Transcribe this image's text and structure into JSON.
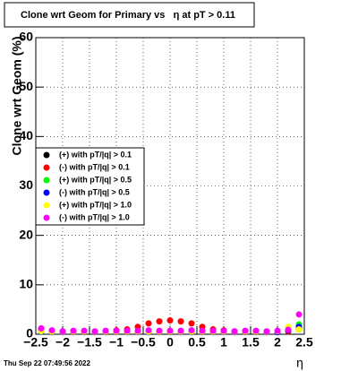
{
  "chart_data": {
    "type": "scatter",
    "title": "Clone wrt Geom for Primary vs   η at pT > 0.11",
    "x_label": "η",
    "y_label": "Clone wrt Geom (%)",
    "timestamp": "Thu Sep 22 07:49:56 2022",
    "x": [
      -2.4,
      -2.2,
      -2.0,
      -1.8,
      -1.6,
      -1.4,
      -1.2,
      -1.0,
      -0.8,
      -0.6,
      -0.4,
      -0.2,
      0.0,
      0.2,
      0.4,
      0.6,
      0.8,
      1.0,
      1.2,
      1.4,
      1.6,
      1.8,
      2.0,
      2.2,
      2.4
    ],
    "series": [
      {
        "name": "(+) with pT/|q| > 0.1",
        "color": "#000000",
        "values": [
          1.0,
          0.6,
          0.5,
          0.5,
          0.5,
          0.5,
          0.5,
          0.5,
          0.6,
          0.6,
          0.6,
          0.6,
          0.6,
          0.6,
          0.6,
          0.6,
          0.6,
          0.5,
          0.5,
          0.5,
          0.5,
          0.5,
          0.5,
          0.6,
          1.0
        ]
      },
      {
        "name": "(-) with pT/|q| > 0.1",
        "color": "#ff0000",
        "values": [
          0.8,
          0.6,
          0.5,
          0.5,
          0.5,
          0.5,
          0.6,
          0.8,
          1.0,
          1.5,
          2.2,
          2.6,
          2.8,
          2.6,
          2.2,
          1.5,
          1.0,
          0.8,
          0.6,
          0.5,
          0.5,
          0.5,
          0.5,
          0.6,
          1.2
        ]
      },
      {
        "name": "(+) with pT/|q| > 0.5",
        "color": "#00ff00",
        "values": [
          0.6,
          0.5,
          0.5,
          0.5,
          0.5,
          0.5,
          0.5,
          0.5,
          0.5,
          0.5,
          0.5,
          0.5,
          0.5,
          0.5,
          0.5,
          0.5,
          0.5,
          0.5,
          0.5,
          0.5,
          0.5,
          0.5,
          0.5,
          0.8,
          2.0
        ]
      },
      {
        "name": "(-) with pT/|q| > 0.5",
        "color": "#0000ff",
        "values": [
          0.5,
          0.4,
          0.4,
          0.4,
          0.4,
          0.4,
          0.4,
          0.4,
          0.4,
          0.4,
          0.4,
          0.4,
          0.4,
          0.4,
          0.4,
          0.4,
          0.4,
          0.4,
          0.4,
          0.4,
          0.4,
          0.4,
          0.4,
          0.8,
          1.5
        ]
      },
      {
        "name": "(+) with pT/|q| > 1.0",
        "color": "#ffff00",
        "values": [
          0.6,
          0.5,
          0.5,
          0.5,
          0.5,
          0.5,
          0.5,
          0.5,
          0.5,
          0.5,
          0.5,
          0.5,
          0.5,
          0.5,
          0.5,
          0.5,
          0.5,
          0.5,
          0.5,
          0.5,
          0.5,
          0.5,
          0.6,
          1.5,
          1.0
        ]
      },
      {
        "name": "(-) with pT/|q| > 1.0",
        "color": "#ff00ff",
        "values": [
          1.2,
          0.8,
          0.6,
          0.7,
          0.7,
          0.6,
          0.7,
          0.7,
          0.7,
          0.7,
          0.8,
          0.7,
          0.7,
          0.7,
          0.8,
          0.7,
          0.7,
          0.7,
          0.6,
          0.7,
          0.7,
          0.6,
          0.7,
          0.9,
          4.0
        ]
      }
    ],
    "xlim": [
      -2.5,
      2.5
    ],
    "xticks": [
      {
        "value": -2.5,
        "label": "−2.5"
      },
      {
        "value": -2,
        "label": "−2"
      },
      {
        "value": -1.5,
        "label": "−1.5"
      },
      {
        "value": -1,
        "label": "−1"
      },
      {
        "value": -0.5,
        "label": "−0.5"
      },
      0,
      0.5,
      1,
      1.5,
      2,
      2.5
    ],
    "ylim": [
      0,
      60
    ],
    "yticks": [
      0,
      10,
      20,
      30,
      40,
      50,
      60
    ],
    "grid": true,
    "legend": "left"
  }
}
